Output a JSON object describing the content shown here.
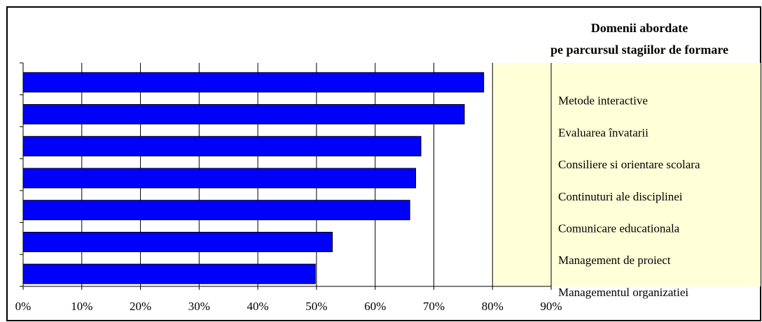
{
  "chart_data": {
    "type": "barh",
    "title": [
      "Domenii abordate",
      "pe parcursul stagiilor de formare"
    ],
    "categories": [
      "Metode interactive",
      "Evaluarea învatarii",
      "Consiliere si orientare scolara",
      "Continuturi ale disciplinei",
      "Comunicare educationala",
      "Management de proiect",
      "Managementul organizatiei"
    ],
    "values": [
      78.5,
      75.2,
      67.8,
      66.9,
      65.9,
      52.7,
      49.8
    ],
    "color": "#0000ff",
    "xlim": [
      0,
      90
    ],
    "xticks": [
      {
        "value": 0,
        "label": "0%"
      },
      {
        "value": 10,
        "label": "10%"
      },
      {
        "value": 20,
        "label": "20%"
      },
      {
        "value": 30,
        "label": "30%"
      },
      {
        "value": 40,
        "label": "40%"
      },
      {
        "value": 50,
        "label": "50%"
      },
      {
        "value": 60,
        "label": "60%"
      },
      {
        "value": 70,
        "label": "70%"
      },
      {
        "value": 80,
        "label": "80%"
      },
      {
        "value": 90,
        "label": "90%"
      }
    ],
    "grid": true
  }
}
